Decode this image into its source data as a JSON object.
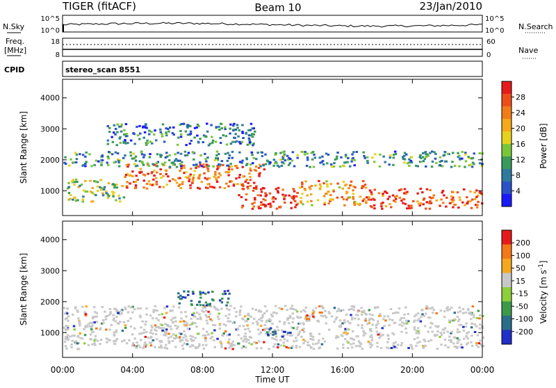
{
  "header": {
    "title": "TIGER (fitACF)",
    "beam": "Beam 10",
    "date": "23/Jan/2010"
  },
  "aux_panels": {
    "nsky_label": "N.Sky",
    "nsearch_label": "N.Search",
    "count_ticks_top": "10^5",
    "count_ticks_bottom": "10^0",
    "freq_label": "Freq.",
    "freq_unit": "[MHz]",
    "freq_ticks": [
      "18",
      "8"
    ],
    "nave_label": "Nave",
    "nave_ticks": [
      "60",
      "0"
    ],
    "cpid_label": "CPID",
    "cpid_value": "stereo_scan 8551"
  },
  "chart_data": [
    {
      "type": "heatmap",
      "panel": "power",
      "ylabel": "Slant Range [km]",
      "xlabel": "",
      "x_ticks": [
        "00:00",
        "04:00",
        "08:00",
        "12:00",
        "16:00",
        "20:00",
        "00:00"
      ],
      "y_ticks": [
        1000,
        2000,
        3000,
        4000
      ],
      "ylim": [
        200,
        4600
      ],
      "xlim_hours": [
        0,
        24
      ],
      "colorbar": {
        "label": "Power [dB]",
        "ticks": [
          "4",
          "8",
          "12",
          "16",
          "20",
          "24",
          "28"
        ],
        "colors": [
          "#1a1aff",
          "#2a52c8",
          "#2f7a9e",
          "#3a9a5a",
          "#7ac63a",
          "#e6d21e",
          "#f4a81a",
          "#f27d18",
          "#ee4d1a",
          "#e61a1a"
        ]
      },
      "features": [
        {
          "t": [
            0.2,
            3.5
          ],
          "r": [
            650,
            1400
          ],
          "level": 0.45
        },
        {
          "t": [
            3.5,
            11.5
          ],
          "r": [
            1100,
            1900
          ],
          "level": 0.8
        },
        {
          "t": [
            10.0,
            13.5
          ],
          "r": [
            450,
            1150
          ],
          "level": 0.95
        },
        {
          "t": [
            13.5,
            17.5
          ],
          "r": [
            550,
            1350
          ],
          "level": 0.7
        },
        {
          "t": [
            17.5,
            24
          ],
          "r": [
            450,
            1100
          ],
          "level": 0.85
        },
        {
          "t": [
            2.5,
            11.0
          ],
          "r": [
            2500,
            3200
          ],
          "level": 0.25
        },
        {
          "t": [
            0.0,
            24
          ],
          "r": [
            1800,
            2300
          ],
          "level": 0.3
        }
      ]
    },
    {
      "type": "heatmap",
      "panel": "velocity",
      "ylabel": "Slant Range [km]",
      "xlabel": "Time UT",
      "x_ticks": [
        "00:00",
        "04:00",
        "08:00",
        "12:00",
        "16:00",
        "20:00",
        "00:00"
      ],
      "y_ticks": [
        1000,
        2000,
        3000,
        4000
      ],
      "ylim": [
        200,
        4600
      ],
      "xlim_hours": [
        0,
        24
      ],
      "colorbar": {
        "label": "Velocity [m s^-1]",
        "ticks": [
          "200",
          "100",
          "50",
          "15",
          "-15",
          "-50",
          "-100",
          "-200"
        ],
        "colors": [
          "#2030c8",
          "#2a6e8a",
          "#3a9a4a",
          "#8ccf3a",
          "#c8c8c8",
          "#f5a81e",
          "#f27818",
          "#e61a1a"
        ]
      },
      "features": [
        {
          "t": [
            0.0,
            24
          ],
          "r": [
            500,
            1900
          ],
          "v": "ground"
        },
        {
          "t": [
            6.5,
            9.5
          ],
          "r": [
            1900,
            2400
          ],
          "v": "positive"
        },
        {
          "t": [
            13.8,
            14.8
          ],
          "r": [
            1400,
            1700
          ],
          "v": "negative"
        },
        {
          "t": [
            11.5,
            13.0
          ],
          "r": [
            900,
            1200
          ],
          "v": "positive"
        }
      ]
    }
  ]
}
